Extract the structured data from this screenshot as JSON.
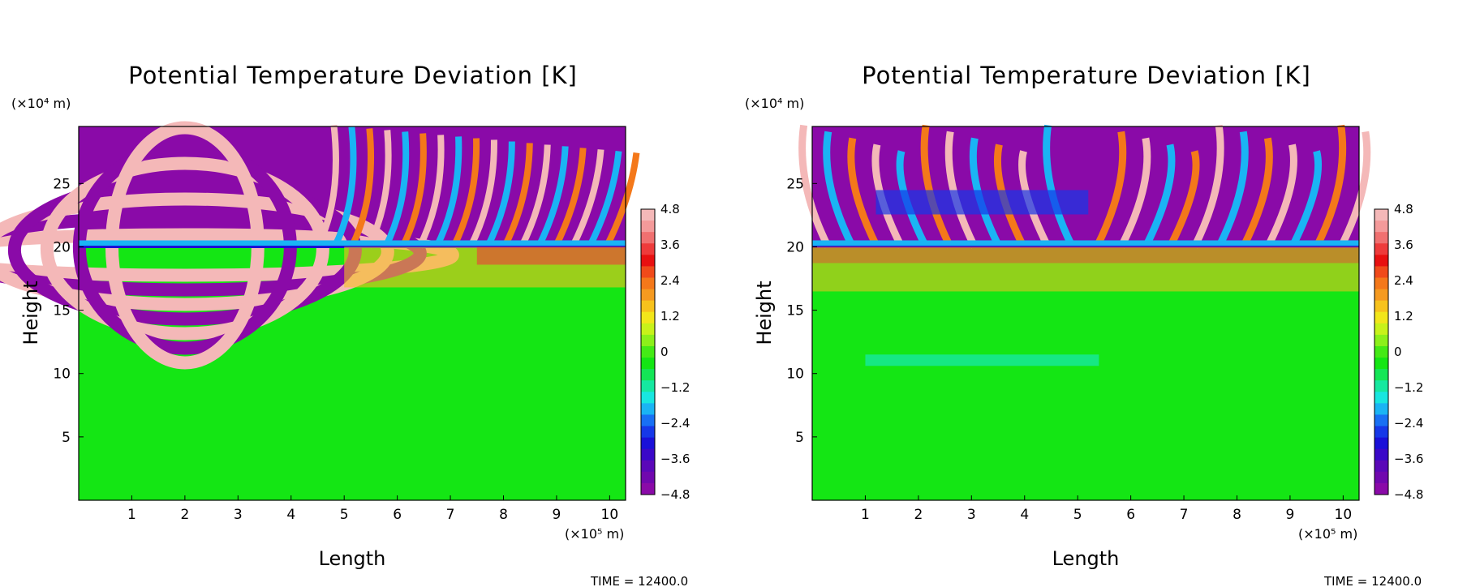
{
  "chart_data": [
    {
      "type": "heatmap",
      "title": "Potential Temperature Deviation [K]",
      "xlabel": "Length",
      "ylabel": "Height",
      "x_unit": "(×10⁵ m)",
      "y_unit": "(×10⁴ m)",
      "xlim": [
        0,
        10.3
      ],
      "ylim": [
        0,
        29.5
      ],
      "x_ticks": [
        "1",
        "2",
        "3",
        "4",
        "5",
        "6",
        "7",
        "8",
        "9",
        "10"
      ],
      "y_ticks": [
        "5",
        "10",
        "15",
        "20",
        "25"
      ],
      "colorbar_ticks": [
        "4.8",
        "3.6",
        "2.4",
        "1.2",
        "0",
        "−1.2",
        "−2.4",
        "−3.6",
        "−4.8"
      ],
      "colorbar_range": [
        -4.8,
        4.8
      ],
      "tropopause_height": 20,
      "footer": "TIME = 12400.0",
      "colors": {
        "positive_max": "#f4b8b8",
        "negative_max": "#8a0aa8",
        "zero": "#14e614"
      }
    },
    {
      "type": "heatmap",
      "title": "Potential Temperature Deviation [K]",
      "xlabel": "Length",
      "ylabel": "Height",
      "x_unit": "(×10⁵ m)",
      "y_unit": "(×10⁴ m)",
      "xlim": [
        0,
        10.3
      ],
      "ylim": [
        0,
        29.5
      ],
      "x_ticks": [
        "1",
        "2",
        "3",
        "4",
        "5",
        "6",
        "7",
        "8",
        "9",
        "10"
      ],
      "y_ticks": [
        "5",
        "10",
        "15",
        "20",
        "25"
      ],
      "colorbar_ticks": [
        "4.8",
        "3.6",
        "2.4",
        "1.2",
        "0",
        "−1.2",
        "−2.4",
        "−3.6",
        "−4.8"
      ],
      "colorbar_range": [
        -4.8,
        4.8
      ],
      "tropopause_height": 20,
      "footer": "TIME = 12400.0",
      "colors": {
        "positive_max": "#f4b8b8",
        "negative_max": "#8a0aa8",
        "zero": "#14e614"
      }
    }
  ]
}
